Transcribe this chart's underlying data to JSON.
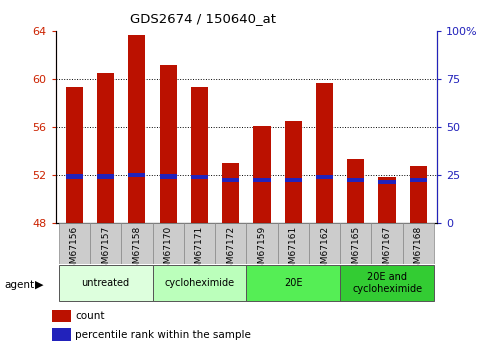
{
  "title": "GDS2674 / 150640_at",
  "samples": [
    "GSM67156",
    "GSM67157",
    "GSM67158",
    "GSM67170",
    "GSM67171",
    "GSM67172",
    "GSM67159",
    "GSM67161",
    "GSM67162",
    "GSM67165",
    "GSM67167",
    "GSM67168"
  ],
  "count_values": [
    59.3,
    60.5,
    63.7,
    61.2,
    59.3,
    53.0,
    56.1,
    56.5,
    59.7,
    53.3,
    51.8,
    52.7
  ],
  "percentile_values": [
    51.85,
    51.85,
    51.95,
    51.85,
    51.82,
    51.55,
    51.55,
    51.55,
    51.82,
    51.55,
    51.4,
    51.55
  ],
  "bar_bottom": 48,
  "ylim_left": [
    48,
    64
  ],
  "ylim_right": [
    0,
    100
  ],
  "yticks_left": [
    48,
    52,
    56,
    60,
    64
  ],
  "yticks_right": [
    0,
    25,
    50,
    75,
    100
  ],
  "ytick_labels_left": [
    "48",
    "52",
    "56",
    "60",
    "64"
  ],
  "ytick_labels_right": [
    "0",
    "25",
    "50",
    "75",
    "100%"
  ],
  "bar_color": "#bb1100",
  "percentile_color": "#2222bb",
  "tick_color_left": "#cc2200",
  "tick_color_right": "#2222bb",
  "agent_groups": [
    {
      "label": "untreated",
      "start": 0,
      "end": 3,
      "color": "#ddffdd"
    },
    {
      "label": "cycloheximide",
      "start": 3,
      "end": 6,
      "color": "#bbffbb"
    },
    {
      "label": "20E",
      "start": 6,
      "end": 9,
      "color": "#55ee55"
    },
    {
      "label": "20E and\ncycloheximide",
      "start": 9,
      "end": 12,
      "color": "#33cc33"
    }
  ],
  "agent_label": "agent",
  "legend_count_label": "count",
  "legend_percentile_label": "percentile rank within the sample",
  "grid_color": "#000000",
  "bar_width": 0.55,
  "plot_bg_color": "#ffffff",
  "sample_area_color": "#cccccc"
}
